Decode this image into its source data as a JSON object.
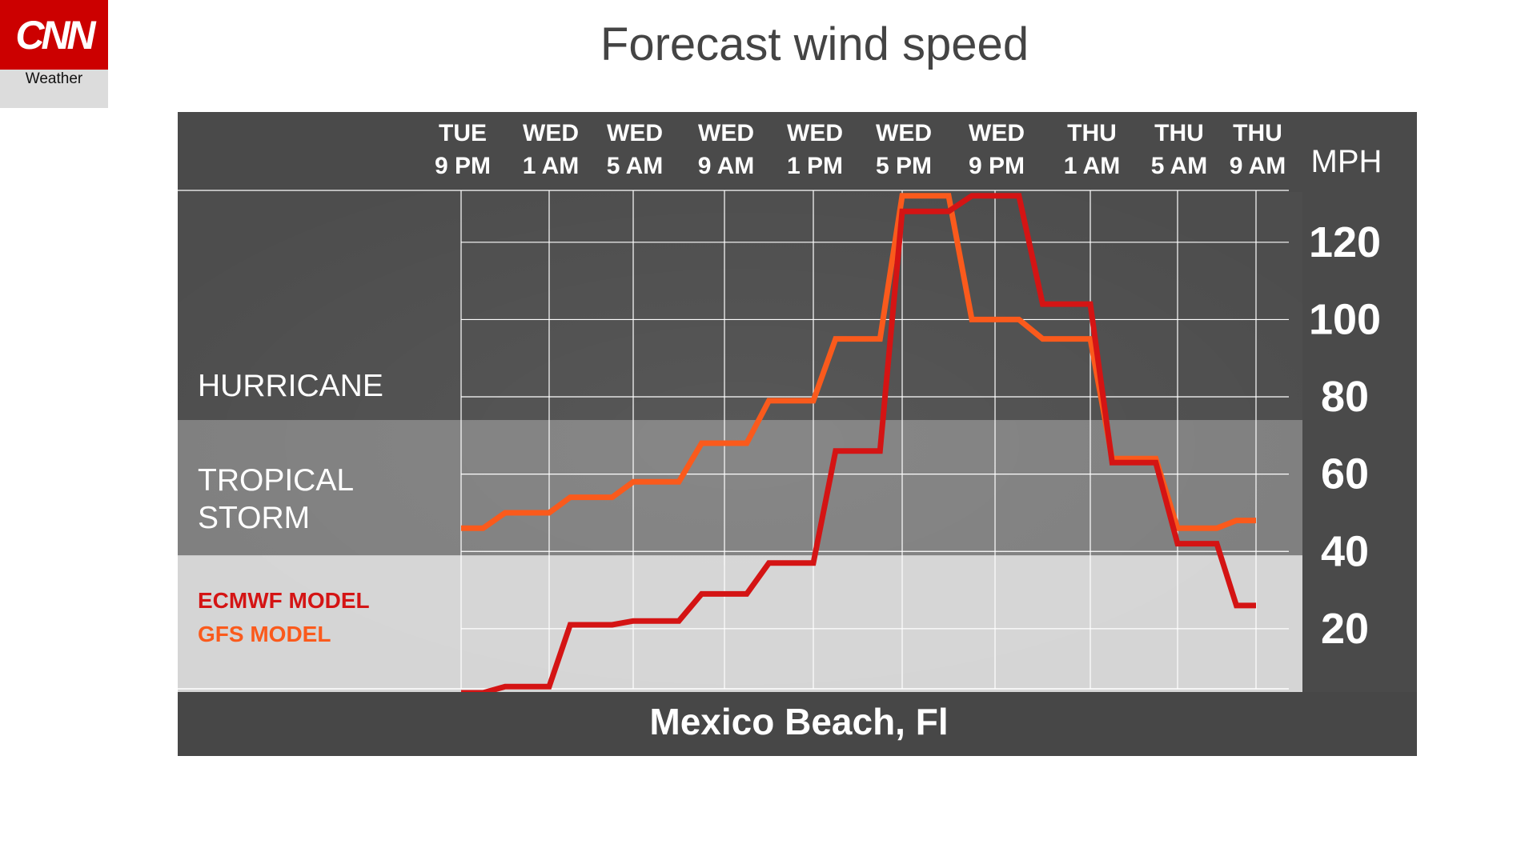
{
  "logo": {
    "brand": "CNN",
    "sub": "Weather"
  },
  "title": "Forecast wind speed",
  "chart_data": {
    "type": "line",
    "title": "Forecast wind speed",
    "location": "Mexico Beach, Fl",
    "unit": "MPH",
    "x_ticks": [
      {
        "day": "TUE",
        "time": "9 PM"
      },
      {
        "day": "WED",
        "time": "1 AM"
      },
      {
        "day": "WED",
        "time": "5 AM"
      },
      {
        "day": "WED",
        "time": "9 AM"
      },
      {
        "day": "WED",
        "time": "1 PM"
      },
      {
        "day": "WED",
        "time": "5 PM"
      },
      {
        "day": "WED",
        "time": "9 PM"
      },
      {
        "day": "THU",
        "time": "1 AM"
      },
      {
        "day": "THU",
        "time": "5 AM"
      },
      {
        "day": "THU",
        "time": "9 AM"
      }
    ],
    "y_ticks": [
      20,
      40,
      60,
      80,
      100,
      120
    ],
    "ylim": [
      3,
      133
    ],
    "bands": [
      {
        "label_lines": [
          "HURRICANE"
        ],
        "from": 74,
        "to": 133,
        "color": "#4d4d4d"
      },
      {
        "label_lines": [
          "TROPICAL",
          "STORM"
        ],
        "from": 39,
        "to": 74,
        "color": "#7f7f7f"
      },
      {
        "label_lines": [],
        "from": 3,
        "to": 39,
        "color": "#d5d5d5"
      }
    ],
    "legend": [
      "ECMWF MODEL",
      "GFS MODEL"
    ],
    "series": [
      {
        "name": "ECMWF MODEL",
        "color": "#d41414",
        "points": [
          [
            0,
            2
          ],
          [
            0.25,
            2
          ],
          [
            0.5,
            5
          ],
          [
            1,
            5
          ],
          [
            1.25,
            21
          ],
          [
            1.75,
            21
          ],
          [
            2,
            22
          ],
          [
            2.5,
            22
          ],
          [
            2.75,
            29
          ],
          [
            3.25,
            29
          ],
          [
            3.5,
            37
          ],
          [
            4,
            37
          ],
          [
            4.25,
            66
          ],
          [
            4.75,
            66
          ],
          [
            5,
            128
          ],
          [
            5.5,
            128
          ],
          [
            5.75,
            132
          ],
          [
            6.25,
            132
          ],
          [
            6.5,
            104
          ],
          [
            7,
            104
          ],
          [
            7.25,
            63
          ],
          [
            7.75,
            63
          ],
          [
            8,
            42
          ],
          [
            8.5,
            42
          ],
          [
            8.75,
            26
          ],
          [
            9,
            26
          ]
        ]
      },
      {
        "name": "GFS MODEL",
        "color": "#fa5a1c",
        "points": [
          [
            0,
            46
          ],
          [
            0.25,
            46
          ],
          [
            0.5,
            50
          ],
          [
            1,
            50
          ],
          [
            1.25,
            54
          ],
          [
            1.75,
            54
          ],
          [
            2,
            58
          ],
          [
            2.5,
            58
          ],
          [
            2.75,
            68
          ],
          [
            3.25,
            68
          ],
          [
            3.5,
            79
          ],
          [
            4,
            79
          ],
          [
            4.25,
            95
          ],
          [
            4.75,
            95
          ],
          [
            5,
            132
          ],
          [
            5.5,
            132
          ],
          [
            5.75,
            100
          ],
          [
            6.25,
            100
          ],
          [
            6.5,
            95
          ],
          [
            7,
            95
          ],
          [
            7.25,
            64
          ],
          [
            7.75,
            64
          ],
          [
            8,
            46
          ],
          [
            8.5,
            46
          ],
          [
            8.75,
            48
          ],
          [
            9,
            48
          ]
        ]
      }
    ],
    "grid": true
  }
}
